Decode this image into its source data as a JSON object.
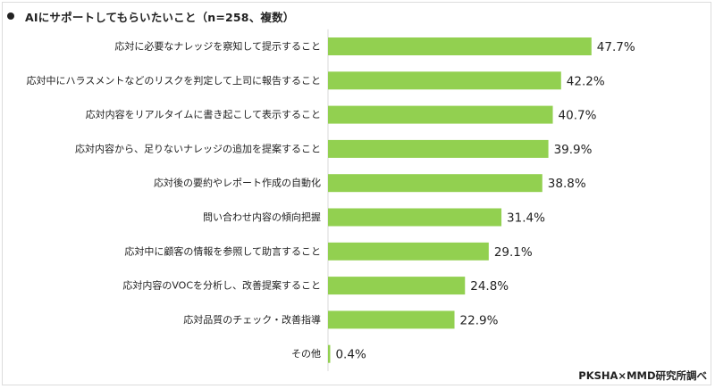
{
  "title": "AIにサポートしてもらいたいこと（n=258、複数）",
  "source": "PKSHA×MMD研究所調べ",
  "chart_data": {
    "type": "bar",
    "orientation": "horizontal",
    "title": "AIにサポートしてもらいたいこと（n=258、複数）",
    "unit": "%",
    "bar_color": "#92d050",
    "xlim": [
      0,
      100
    ],
    "grid": false,
    "categories": [
      "応対に必要なナレッジを察知して提示すること",
      "応対中にハラスメントなどのリスクを判定して上司に報告すること",
      "応対内容をリアルタイムに書き起こして表示すること",
      "応対内容から、足りないナレッジの追加を提案すること",
      "応対後の要約やレポート作成の自動化",
      "問い合わせ内容の傾向把握",
      "応対中に顧客の情報を参照して助言すること",
      "応対内容のVOCを分析し、改善提案すること",
      "応対品質のチェック・改善指導",
      "その他"
    ],
    "values": [
      47.7,
      42.2,
      40.7,
      39.9,
      38.8,
      31.4,
      29.1,
      24.8,
      22.9,
      0.4
    ],
    "value_labels": [
      "47.7%",
      "42.2%",
      "40.7%",
      "39.9%",
      "38.8%",
      "31.4%",
      "29.1%",
      "24.8%",
      "22.9%",
      "0.4%"
    ]
  }
}
